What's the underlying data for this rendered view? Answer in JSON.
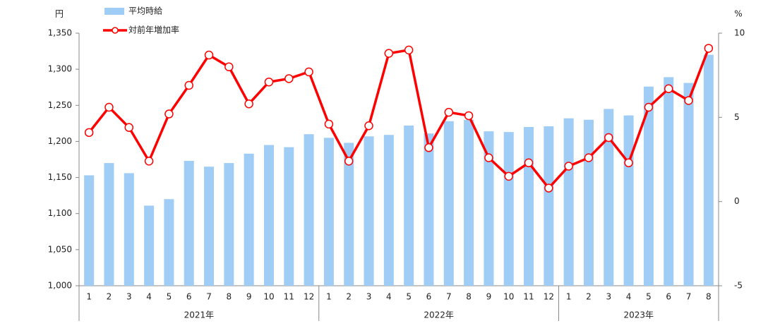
{
  "chart_data": {
    "type": "combo",
    "y_unit": "円",
    "y2_unit": "%",
    "categories": [
      "1",
      "2",
      "3",
      "4",
      "5",
      "6",
      "7",
      "8",
      "9",
      "10",
      "11",
      "12",
      "1",
      "2",
      "3",
      "4",
      "5",
      "6",
      "7",
      "8",
      "9",
      "10",
      "11",
      "12",
      "1",
      "2",
      "3",
      "4",
      "5",
      "6",
      "7",
      "8"
    ],
    "groups": [
      {
        "label": "2021年",
        "span": 12
      },
      {
        "label": "2022年",
        "span": 12
      },
      {
        "label": "2023年",
        "span": 8
      }
    ],
    "series": [
      {
        "name": "平均時給",
        "type": "bar",
        "color": "#9fcdf6",
        "values": [
          1153,
          1170,
          1156,
          1111,
          1120,
          1173,
          1165,
          1170,
          1183,
          1195,
          1192,
          1210,
          1205,
          1198,
          1207,
          1209,
          1222,
          1211,
          1228,
          1230,
          1214,
          1213,
          1220,
          1221,
          1232,
          1230,
          1245,
          1236,
          1276,
          1289,
          1281,
          1320
        ]
      },
      {
        "name": "対前年増加率",
        "type": "line",
        "axis": "y2",
        "color": "#ff0000",
        "values": [
          4.1,
          5.6,
          4.4,
          2.4,
          5.2,
          6.9,
          8.7,
          8.0,
          5.8,
          7.1,
          7.3,
          7.7,
          4.6,
          2.4,
          4.5,
          8.8,
          9.0,
          3.2,
          5.3,
          5.1,
          2.6,
          1.5,
          2.3,
          0.8,
          2.1,
          2.6,
          3.8,
          2.3,
          5.6,
          6.7,
          6.0,
          9.1
        ]
      }
    ],
    "ylim": [
      1000,
      1350
    ],
    "yticks": [
      {
        "value": 1000,
        "label": "1,000"
      },
      {
        "value": 1050,
        "label": "1,050"
      },
      {
        "value": 1100,
        "label": "1,100"
      },
      {
        "value": 1150,
        "label": "1,150"
      },
      {
        "value": 1200,
        "label": "1,200"
      },
      {
        "value": 1250,
        "label": "1,250"
      },
      {
        "value": 1300,
        "label": "1,300"
      },
      {
        "value": 1350,
        "label": "1,350"
      }
    ],
    "y2lim": [
      -5,
      10
    ],
    "y2ticks": [
      -5,
      0,
      5,
      10
    ],
    "grid": false
  }
}
